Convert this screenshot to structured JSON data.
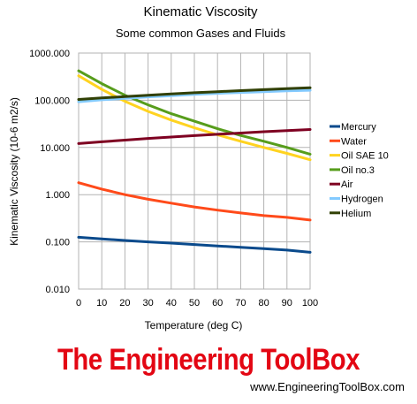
{
  "chart_data": {
    "type": "line",
    "title": "Kinematic Viscosity",
    "subtitle": "Some common Gases and Fluids",
    "xlabel": "Temperature (deg C)",
    "ylabel": "Kinematic Viscosity (10-6 m2/s)",
    "y_scale": "log",
    "xlim": [
      0,
      100
    ],
    "ylim": [
      0.01,
      1000
    ],
    "x_ticks": [
      "0",
      "10",
      "20",
      "30",
      "40",
      "50",
      "60",
      "70",
      "80",
      "90",
      "100"
    ],
    "y_ticks": [
      "0.010",
      "0.100",
      "1.000",
      "10.000",
      "100.000",
      "1000.000"
    ],
    "grid": true,
    "legend_position": "right",
    "x": [
      0,
      10,
      20,
      30,
      40,
      50,
      60,
      70,
      80,
      90,
      100
    ],
    "series": [
      {
        "name": "Mercury",
        "color": "#0a4a8c",
        "values": [
          0.125,
          0.116,
          0.107,
          0.1,
          0.094,
          0.088,
          0.082,
          0.077,
          0.072,
          0.067,
          0.06
        ]
      },
      {
        "name": "Water",
        "color": "#ff4a1a",
        "values": [
          1.79,
          1.31,
          1.0,
          0.8,
          0.66,
          0.55,
          0.47,
          0.41,
          0.36,
          0.33,
          0.29
        ]
      },
      {
        "name": "Oil SAE 10",
        "color": "#ffd320",
        "values": [
          330,
          170,
          95,
          58,
          38,
          26,
          18.5,
          13.5,
          10,
          7.5,
          5.5
        ]
      },
      {
        "name": "Oil no.3",
        "color": "#579d1c",
        "values": [
          420,
          225,
          128,
          80,
          52,
          36,
          25,
          18,
          13.5,
          10,
          7.2
        ]
      },
      {
        "name": "Air",
        "color": "#7e0021",
        "values": [
          12.1,
          13.2,
          14.3,
          15.5,
          16.6,
          17.8,
          19.0,
          20.2,
          21.5,
          22.8,
          24.0
        ]
      },
      {
        "name": "Hydrogen",
        "color": "#83caff",
        "values": [
          93,
          102,
          110,
          118,
          125,
          133,
          140,
          146,
          152,
          158,
          163
        ]
      },
      {
        "name": "Helium",
        "color": "#314004",
        "values": [
          104,
          112,
          120,
          128,
          136,
          144,
          152,
          160,
          168,
          176,
          184
        ]
      }
    ]
  },
  "branding": {
    "logo_text": "The Engineering ToolBox",
    "website": "www.EngineeringToolBox.com"
  }
}
